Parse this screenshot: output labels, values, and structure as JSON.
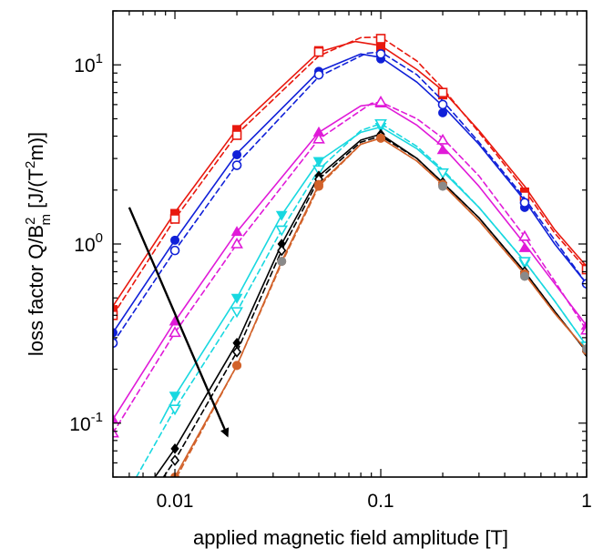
{
  "chart_data": {
    "type": "line",
    "xlabel": "applied magnetic field amplitude [T]",
    "ylabel_parts": {
      "pre": "loss factor Q/B",
      "sup1": "2",
      "sub1": "m",
      "mid": " [J/(T",
      "sup2": "2",
      "post": "m)]"
    },
    "x_scale": "log",
    "y_scale": "log",
    "xlim": [
      0.005,
      1
    ],
    "ylim": [
      0.05,
      20
    ],
    "grid": false,
    "x_ticks": [
      {
        "value": 0.01,
        "label": "0.01"
      },
      {
        "value": 0.1,
        "label": "0.1"
      },
      {
        "value": 1,
        "label": "1"
      }
    ],
    "y_ticks": [
      {
        "value": 0.1,
        "base": "10",
        "exp": "-1"
      },
      {
        "value": 1,
        "base": "10",
        "exp": "0"
      },
      {
        "value": 10,
        "base": "10",
        "exp": "1"
      }
    ],
    "annotation": {
      "type": "arrow",
      "from": [
        0.006,
        1.6
      ],
      "to": [
        0.018,
        0.085
      ]
    },
    "series": [
      {
        "color": "#e8180e",
        "dashed": false,
        "marker": "square",
        "points": [
          [
            0.005,
            0.43
          ],
          [
            0.01,
            1.48
          ],
          [
            0.02,
            4.35
          ],
          [
            0.05,
            12.0
          ],
          [
            0.1,
            12.5
          ],
          [
            0.2,
            6.8
          ],
          [
            0.5,
            1.95
          ],
          [
            1,
            0.73
          ]
        ],
        "curve": [
          [
            0.005,
            0.45
          ],
          [
            0.01,
            1.5
          ],
          [
            0.02,
            4.4
          ],
          [
            0.05,
            11.8
          ],
          [
            0.075,
            13.5
          ],
          [
            0.1,
            12.8
          ],
          [
            0.15,
            9.4
          ],
          [
            0.2,
            7.2
          ],
          [
            0.3,
            4.3
          ],
          [
            0.5,
            2.1
          ],
          [
            0.7,
            1.2
          ],
          [
            1,
            0.75
          ]
        ]
      },
      {
        "color": "#e8180e",
        "dashed": true,
        "marker": "square-open",
        "points": [
          [
            0.005,
            0.4
          ],
          [
            0.01,
            1.38
          ],
          [
            0.02,
            4.05
          ],
          [
            0.05,
            11.8
          ],
          [
            0.1,
            14.0
          ],
          [
            0.2,
            7.0
          ],
          [
            0.5,
            1.85
          ],
          [
            1,
            0.72
          ]
        ],
        "curve": [
          [
            0.005,
            0.4
          ],
          [
            0.01,
            1.38
          ],
          [
            0.02,
            4.1
          ],
          [
            0.05,
            11.2
          ],
          [
            0.08,
            14.2
          ],
          [
            0.1,
            14.3
          ],
          [
            0.15,
            10.5
          ],
          [
            0.2,
            7.4
          ],
          [
            0.3,
            4.2
          ],
          [
            0.5,
            2.0
          ],
          [
            0.7,
            1.15
          ],
          [
            1,
            0.72
          ]
        ]
      },
      {
        "color": "#1020d8",
        "dashed": false,
        "marker": "circle",
        "points": [
          [
            0.005,
            0.32
          ],
          [
            0.01,
            1.05
          ],
          [
            0.02,
            3.15
          ],
          [
            0.05,
            9.2
          ],
          [
            0.1,
            10.8
          ],
          [
            0.2,
            5.4
          ],
          [
            0.5,
            1.6
          ],
          [
            1,
            0.6
          ]
        ],
        "curve": [
          [
            0.005,
            0.32
          ],
          [
            0.01,
            1.05
          ],
          [
            0.02,
            3.2
          ],
          [
            0.05,
            9.2
          ],
          [
            0.08,
            11.5
          ],
          [
            0.1,
            11.0
          ],
          [
            0.15,
            8.0
          ],
          [
            0.2,
            5.9
          ],
          [
            0.3,
            3.6
          ],
          [
            0.5,
            1.75
          ],
          [
            0.7,
            1.0
          ],
          [
            1,
            0.6
          ]
        ]
      },
      {
        "color": "#1020d8",
        "dashed": true,
        "marker": "circle-open",
        "points": [
          [
            0.005,
            0.28
          ],
          [
            0.01,
            0.92
          ],
          [
            0.02,
            2.75
          ],
          [
            0.05,
            8.8
          ],
          [
            0.1,
            11.5
          ],
          [
            0.2,
            6.0
          ],
          [
            0.5,
            1.7
          ],
          [
            1,
            0.6
          ]
        ],
        "curve": [
          [
            0.005,
            0.28
          ],
          [
            0.01,
            0.92
          ],
          [
            0.02,
            2.8
          ],
          [
            0.05,
            8.6
          ],
          [
            0.085,
            11.6
          ],
          [
            0.1,
            11.8
          ],
          [
            0.15,
            8.8
          ],
          [
            0.2,
            6.3
          ],
          [
            0.3,
            3.7
          ],
          [
            0.5,
            1.8
          ],
          [
            0.7,
            1.05
          ],
          [
            1,
            0.6
          ]
        ]
      },
      {
        "color": "#e01ad8",
        "dashed": false,
        "marker": "triangle-up",
        "points": [
          [
            0.005,
            0.105
          ],
          [
            0.01,
            0.37
          ],
          [
            0.02,
            1.17
          ],
          [
            0.05,
            4.2
          ],
          [
            0.1,
            6.1
          ],
          [
            0.2,
            3.35
          ],
          [
            0.5,
            0.95
          ],
          [
            1,
            0.35
          ]
        ],
        "curve": [
          [
            0.005,
            0.105
          ],
          [
            0.01,
            0.37
          ],
          [
            0.02,
            1.17
          ],
          [
            0.05,
            4.2
          ],
          [
            0.08,
            5.9
          ],
          [
            0.1,
            6.1
          ],
          [
            0.15,
            4.6
          ],
          [
            0.2,
            3.5
          ],
          [
            0.3,
            2.1
          ],
          [
            0.5,
            1.0
          ],
          [
            0.7,
            0.6
          ],
          [
            1,
            0.35
          ]
        ]
      },
      {
        "color": "#e01ad8",
        "dashed": true,
        "marker": "triangle-up-open",
        "points": [
          [
            0.005,
            0.088
          ],
          [
            0.01,
            0.32
          ],
          [
            0.02,
            1.0
          ],
          [
            0.05,
            3.85
          ],
          [
            0.1,
            6.2
          ],
          [
            0.2,
            3.8
          ],
          [
            0.5,
            1.1
          ],
          [
            1,
            0.33
          ]
        ],
        "curve": [
          [
            0.005,
            0.088
          ],
          [
            0.01,
            0.32
          ],
          [
            0.02,
            1.0
          ],
          [
            0.05,
            3.85
          ],
          [
            0.09,
            6.1
          ],
          [
            0.1,
            6.2
          ],
          [
            0.15,
            5.0
          ],
          [
            0.2,
            3.9
          ],
          [
            0.3,
            2.4
          ],
          [
            0.5,
            1.1
          ],
          [
            0.7,
            0.62
          ],
          [
            1,
            0.33
          ]
        ]
      },
      {
        "color": "#18d8e0",
        "dashed": false,
        "marker": "triangle-down",
        "points": [
          [
            0.01,
            0.142
          ],
          [
            0.02,
            0.5
          ],
          [
            0.033,
            1.45
          ],
          [
            0.05,
            2.9
          ],
          [
            0.1,
            4.5
          ],
          [
            0.2,
            2.5
          ],
          [
            0.5,
            0.78
          ],
          [
            1,
            0.27
          ]
        ],
        "curve": [
          [
            0.0085,
            0.1
          ],
          [
            0.01,
            0.142
          ],
          [
            0.02,
            0.5
          ],
          [
            0.033,
            1.45
          ],
          [
            0.05,
            2.9
          ],
          [
            0.08,
            4.2
          ],
          [
            0.1,
            4.5
          ],
          [
            0.15,
            3.4
          ],
          [
            0.2,
            2.55
          ],
          [
            0.3,
            1.6
          ],
          [
            0.5,
            0.8
          ],
          [
            0.7,
            0.48
          ],
          [
            1,
            0.27
          ]
        ]
      },
      {
        "color": "#18d8e0",
        "dashed": true,
        "marker": "triangle-down-open",
        "points": [
          [
            0.01,
            0.12
          ],
          [
            0.02,
            0.42
          ],
          [
            0.033,
            1.2
          ],
          [
            0.05,
            2.6
          ],
          [
            0.1,
            4.7
          ],
          [
            0.2,
            2.5
          ],
          [
            0.5,
            0.8
          ],
          [
            1,
            0.27
          ]
        ],
        "curve": [
          [
            0.0065,
            0.05
          ],
          [
            0.01,
            0.12
          ],
          [
            0.02,
            0.42
          ],
          [
            0.033,
            1.2
          ],
          [
            0.05,
            2.6
          ],
          [
            0.08,
            4.3
          ],
          [
            0.1,
            4.7
          ],
          [
            0.15,
            3.5
          ],
          [
            0.2,
            2.6
          ],
          [
            0.3,
            1.6
          ],
          [
            0.5,
            0.8
          ],
          [
            0.7,
            0.48
          ],
          [
            1,
            0.27
          ]
        ]
      },
      {
        "color": "#000000",
        "dashed": false,
        "marker": "diamond",
        "points": [
          [
            0.01,
            0.072
          ],
          [
            0.02,
            0.28
          ],
          [
            0.033,
            1.0
          ],
          [
            0.05,
            2.4
          ],
          [
            0.1,
            4.1
          ],
          [
            0.2,
            2.2
          ],
          [
            0.5,
            0.7
          ],
          [
            1,
            0.25
          ]
        ],
        "curve": [
          [
            0.008,
            0.05
          ],
          [
            0.01,
            0.072
          ],
          [
            0.02,
            0.28
          ],
          [
            0.033,
            1.0
          ],
          [
            0.05,
            2.4
          ],
          [
            0.08,
            3.8
          ],
          [
            0.1,
            4.1
          ],
          [
            0.15,
            3.0
          ],
          [
            0.2,
            2.2
          ],
          [
            0.3,
            1.4
          ],
          [
            0.5,
            0.7
          ],
          [
            0.7,
            0.42
          ],
          [
            1,
            0.25
          ]
        ]
      },
      {
        "color": "#000000",
        "dashed": true,
        "marker": "diamond-open",
        "points": [
          [
            0.01,
            0.062
          ],
          [
            0.02,
            0.25
          ],
          [
            0.033,
            0.92
          ],
          [
            0.05,
            2.3
          ],
          [
            0.1,
            4.0
          ],
          [
            0.2,
            2.2
          ],
          [
            0.5,
            0.7
          ],
          [
            1,
            0.25
          ]
        ],
        "curve": [
          [
            0.0088,
            0.05
          ],
          [
            0.01,
            0.062
          ],
          [
            0.02,
            0.25
          ],
          [
            0.033,
            0.92
          ],
          [
            0.05,
            2.3
          ],
          [
            0.08,
            3.7
          ],
          [
            0.1,
            4.0
          ],
          [
            0.15,
            3.0
          ],
          [
            0.2,
            2.2
          ],
          [
            0.3,
            1.4
          ],
          [
            0.5,
            0.7
          ],
          [
            0.7,
            0.42
          ],
          [
            1,
            0.25
          ]
        ]
      },
      {
        "color": "#d2622a",
        "dashed": false,
        "marker": "circle",
        "points": [
          [
            0.01,
            0.05
          ],
          [
            0.02,
            0.21
          ],
          [
            0.033,
            0.8
          ],
          [
            0.05,
            2.15
          ],
          [
            0.1,
            3.9
          ],
          [
            0.2,
            2.15
          ],
          [
            0.5,
            0.68
          ],
          [
            1,
            0.255
          ]
        ],
        "curve": [
          [
            0.01,
            0.05
          ],
          [
            0.02,
            0.21
          ],
          [
            0.033,
            0.8
          ],
          [
            0.05,
            2.15
          ],
          [
            0.08,
            3.6
          ],
          [
            0.1,
            3.9
          ],
          [
            0.15,
            2.9
          ],
          [
            0.2,
            2.15
          ],
          [
            0.3,
            1.35
          ],
          [
            0.5,
            0.68
          ],
          [
            0.7,
            0.41
          ],
          [
            1,
            0.255
          ]
        ]
      },
      {
        "color": "#d2622a",
        "dashed": true,
        "marker": "circle",
        "points": [
          [
            0.02,
            0.21
          ],
          [
            0.05,
            2.1
          ],
          [
            0.1,
            3.9
          ],
          [
            0.2,
            2.15
          ],
          [
            0.5,
            0.68
          ],
          [
            1,
            0.255
          ]
        ],
        "curve": [
          [
            0.0102,
            0.05
          ],
          [
            0.02,
            0.21
          ],
          [
            0.033,
            0.78
          ],
          [
            0.05,
            2.1
          ],
          [
            0.08,
            3.6
          ],
          [
            0.1,
            3.9
          ],
          [
            0.15,
            2.9
          ],
          [
            0.2,
            2.15
          ],
          [
            0.3,
            1.35
          ],
          [
            0.5,
            0.68
          ],
          [
            0.7,
            0.41
          ],
          [
            1,
            0.255
          ]
        ]
      },
      {
        "color": "#8a8a8a",
        "dashed": false,
        "marker": "circle",
        "points": [
          [
            0.033,
            0.8
          ],
          [
            0.2,
            2.1
          ],
          [
            0.5,
            0.66
          ],
          [
            1,
            0.26
          ]
        ],
        "curve": []
      }
    ]
  }
}
